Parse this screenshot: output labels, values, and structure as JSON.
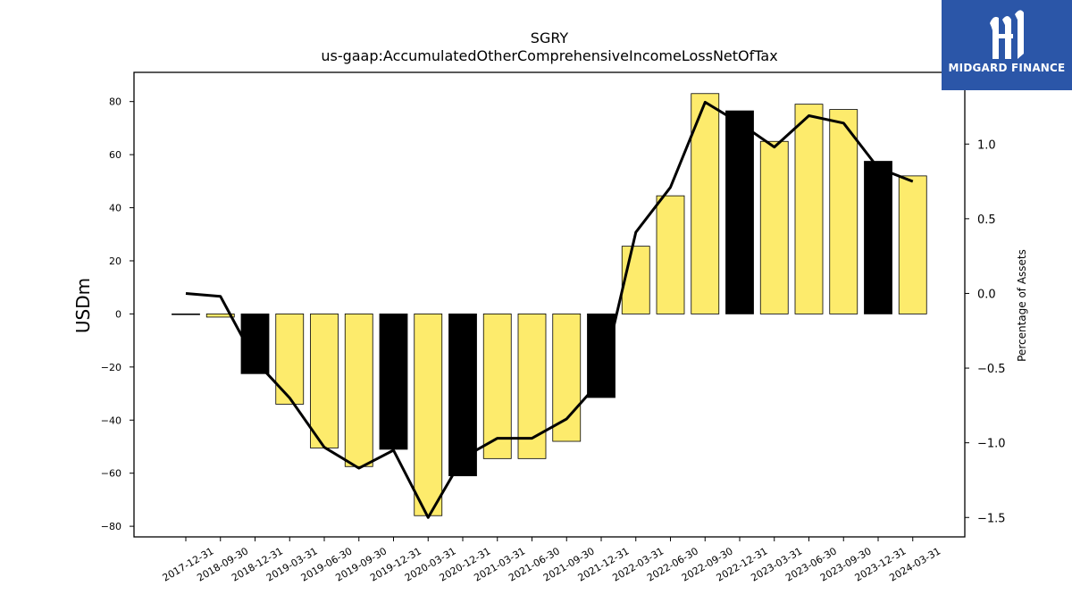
{
  "chart_data": {
    "type": "bar",
    "title": "SGRY",
    "subtitle": "us-gaap:AccumulatedOtherComprehensiveIncomeLossNetOfTax",
    "ylabel": "USDm",
    "y2label": "Percentage of Assets",
    "ylim": [
      -84,
      91
    ],
    "y2lim": [
      -1.63,
      1.48
    ],
    "yticks": [
      -80,
      -60,
      -40,
      -20,
      0,
      20,
      40,
      60,
      80
    ],
    "y2ticks": [
      -1.5,
      -1.0,
      -0.5,
      0.0,
      0.5,
      1.0
    ],
    "categories": [
      "2017-12-31",
      "2018-09-30",
      "2018-12-31",
      "2019-03-31",
      "2019-06-30",
      "2019-09-30",
      "2019-12-31",
      "2020-03-31",
      "2020-12-31",
      "2021-03-31",
      "2021-06-30",
      "2021-09-30",
      "2021-12-31",
      "2022-03-31",
      "2022-06-30",
      "2022-09-30",
      "2022-12-31",
      "2023-03-31",
      "2023-06-30",
      "2023-09-30",
      "2023-12-31",
      "2024-03-31"
    ],
    "series": [
      {
        "values": [
          0.0,
          -1.2,
          -22.5,
          -34,
          -50.5,
          -57.5,
          -51,
          -76,
          -61,
          -54.5,
          -54.5,
          -48,
          -31.5,
          25.5,
          44.5,
          83,
          76.5,
          65,
          79,
          77,
          57.5,
          52
        ],
        "bar_colors": [
          "#fdeb6c",
          "#fdeb6c",
          "#000000",
          "#fdeb6c",
          "#fdeb6c",
          "#fdeb6c",
          "#000000",
          "#fdeb6c",
          "#000000",
          "#fdeb6c",
          "#fdeb6c",
          "#fdeb6c",
          "#000000",
          "#fdeb6c",
          "#fdeb6c",
          "#fdeb6c",
          "#000000",
          "#fdeb6c",
          "#fdeb6c",
          "#fdeb6c",
          "#000000",
          "#fdeb6c"
        ]
      },
      {
        "axis": "right",
        "type": "line",
        "values": [
          0.0,
          -0.02,
          -0.45,
          -0.7,
          -1.03,
          -1.17,
          -1.05,
          -1.5,
          -1.1,
          -0.97,
          -0.97,
          -0.84,
          -0.58,
          0.41,
          0.71,
          1.28,
          1.14,
          0.98,
          1.19,
          1.14,
          0.84,
          0.75
        ]
      }
    ],
    "grid": false
  },
  "logo": {
    "text": "MIDGARD FINANCE",
    "background": "#2b56a8"
  },
  "colors": {
    "bar_default": "#fdeb6c",
    "bar_highlight": "#000000",
    "line": "#000000"
  }
}
